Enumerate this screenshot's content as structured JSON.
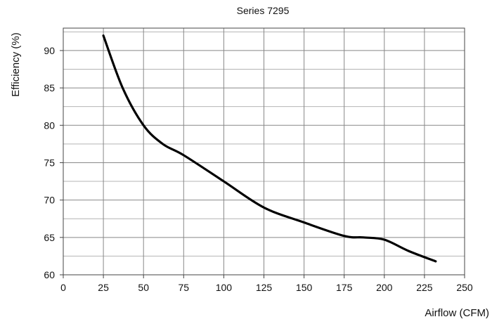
{
  "chart_data": {
    "type": "line",
    "title": "Series 7295",
    "xlabel": "Airflow (CFM)",
    "ylabel": "Efficiency (%)",
    "xlim": [
      0,
      250
    ],
    "ylim": [
      60,
      93
    ],
    "x_ticks": [
      0,
      25,
      50,
      75,
      100,
      125,
      150,
      175,
      200,
      225,
      250
    ],
    "y_ticks": [
      60,
      65,
      70,
      75,
      80,
      85,
      90
    ],
    "grid": true,
    "legend": "none",
    "series": [
      {
        "color": "#000000",
        "x": [
          25,
          37,
          50,
          62,
          75,
          100,
          125,
          150,
          175,
          187,
          200,
          215,
          232
        ],
        "y": [
          92,
          85,
          80,
          77.5,
          76,
          72.5,
          69,
          67,
          65.2,
          65,
          64.7,
          63.2,
          61.8
        ]
      }
    ]
  }
}
